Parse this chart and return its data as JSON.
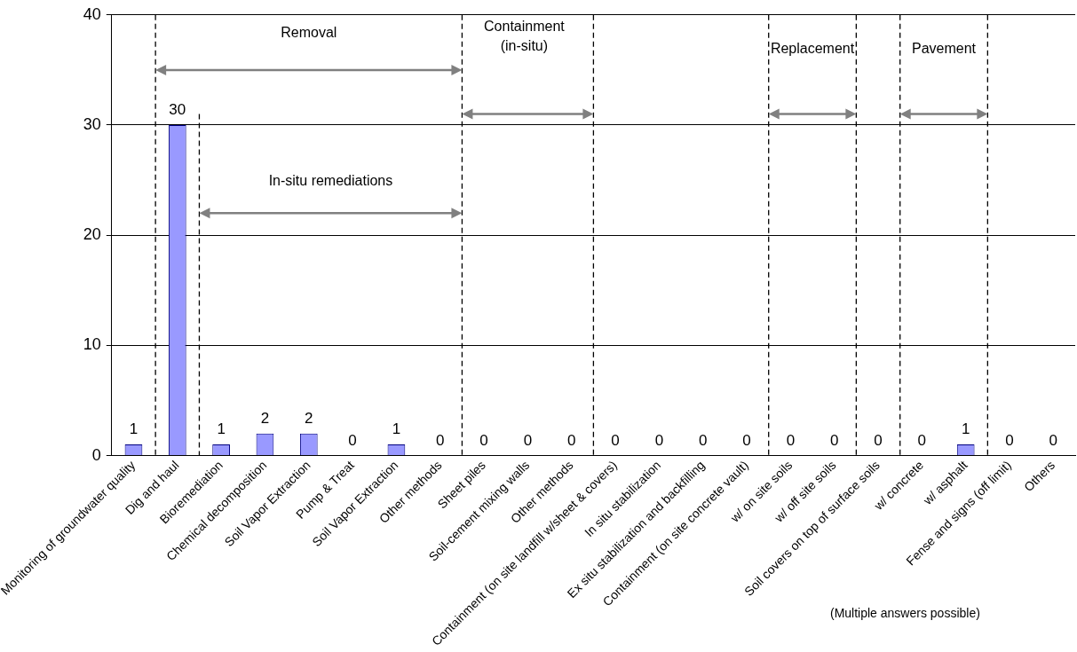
{
  "chart_data": {
    "type": "bar",
    "categories": [
      "Monitoring of groundwater quality",
      "Dig and haul",
      "Bioremediation",
      "Chemical decomposition",
      "Soil Vapor Extraction",
      "Pump & Treat",
      "Soil Vapor Extraction",
      "Other methods",
      "Sheet piles",
      "Soil-cement mixing walls",
      "Other methods",
      "Containment (on site landfill w/sheet & covers)",
      "In situ stabilization",
      "Ex situ stabilization and backfilling",
      "Containment (on site concrete vault)",
      "w/ on site soils",
      "w/ off site soils",
      "Soil covers on top of surface soils",
      "w/ concrete",
      "w/ asphalt",
      "Fense and signs (off limit)",
      "Others"
    ],
    "values": [
      1,
      30,
      1,
      2,
      2,
      0,
      1,
      0,
      0,
      0,
      0,
      0,
      0,
      0,
      0,
      0,
      0,
      0,
      0,
      1,
      0,
      0
    ],
    "color": "#9999ff",
    "ylim": [
      0,
      40
    ],
    "yticks": [
      0,
      10,
      20,
      30,
      40
    ],
    "grid": "y",
    "data_labels": true,
    "annotations": [
      "Removal",
      "In-situ remediations",
      "Containment\n(in-situ)",
      "Replacement",
      "Pavement",
      "(Multiple answers possible)"
    ]
  }
}
